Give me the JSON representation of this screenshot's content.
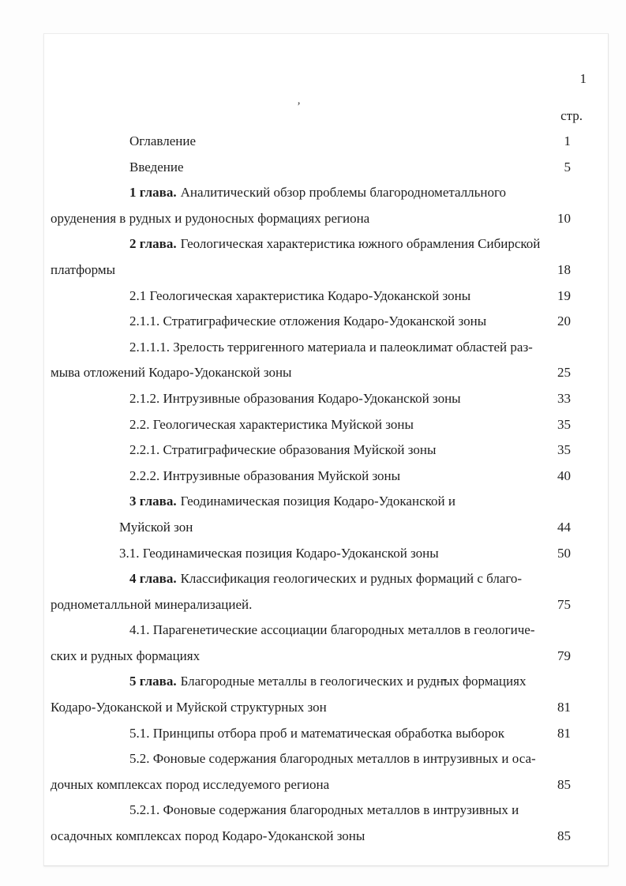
{
  "page": {
    "corner_page_number": "1",
    "column_header": "стр.",
    "stray_apostrophe": "’"
  },
  "toc": {
    "lines": [
      {
        "style": "indent",
        "text": "Оглавление",
        "page": "1"
      },
      {
        "style": "indent",
        "text": "Введение",
        "page": "5"
      },
      {
        "style": "indent",
        "bold": "1 глава.",
        "text": "Аналитический обзор проблемы благороднометалльного"
      },
      {
        "style": "flush",
        "text": "оруденения в рудных и рудоносных формациях региона",
        "page": "10"
      },
      {
        "style": "indent",
        "bold": "2 глава.",
        "text": "Геологическая характеристика южного обрамления Сибирской"
      },
      {
        "style": "flush",
        "text": "платформы",
        "page": "18"
      },
      {
        "style": "indent",
        "text": "2.1 Геологическая характеристика Кодаро-Удоканской зоны",
        "page": "19"
      },
      {
        "style": "indent",
        "text": "2.1.1. Стратиграфические отложения Кодаро-Удоканской зоны",
        "page": "20"
      },
      {
        "style": "indent",
        "text": "2.1.1.1. Зрелость терригенного материала и палеоклимат областей раз-"
      },
      {
        "style": "flush",
        "text": "мыва отложений Кодаро-Удоканской зоны",
        "page": "25"
      },
      {
        "style": "indent",
        "text": "2.1.2. Интрузивные образования Кодаро-Удоканской зоны",
        "page": "33"
      },
      {
        "style": "indent",
        "text": "2.2. Геологическая характеристика Муйской зоны",
        "page": "35"
      },
      {
        "style": "indent",
        "text": "2.2.1. Стратиграфические образования Муйской зоны",
        "page": "35"
      },
      {
        "style": "indent",
        "text": "2.2.2. Интрузивные образования Муйской зоны",
        "page": "40"
      },
      {
        "style": "indent",
        "bold": "3 глава.",
        "text": "Геодинамическая позиция Кодаро-Удоканской и"
      },
      {
        "style": "indent2",
        "text": "Муйской зон",
        "page": "44"
      },
      {
        "style": "indent2",
        "text": "3.1. Геодинамическая позиция Кодаро-Удоканской зоны",
        "page": "50"
      },
      {
        "style": "indent",
        "bold": "4 глава.",
        "text": "Классификация геологических и рудных формаций с благо-"
      },
      {
        "style": "flush",
        "text": "роднометалльной минерализацией.",
        "page": "75"
      },
      {
        "style": "indent",
        "text": "4.1. Парагенетические ассоциации благородных металлов в геологиче-"
      },
      {
        "style": "flush",
        "text": "ских и рудных формациях",
        "page": "79"
      },
      {
        "style": "indent",
        "bold": "5 глава.",
        "text": "Благородные металлы в геологических и рудных формациях"
      },
      {
        "style": "flush",
        "text": "Кодаро-Удоканской и Муйской структурных зон",
        "page": "81"
      },
      {
        "style": "indent",
        "text": "5.1. Принципы отбора проб и математическая обработка выборок",
        "page": "81"
      },
      {
        "style": "indent",
        "text": "5.2. Фоновые содержания благородных металлов в интрузивных и оса-"
      },
      {
        "style": "flush",
        "text": "дочных комплексах пород исследуемого региона",
        "page": "85"
      },
      {
        "style": "indent",
        "text": "5.2.1. Фоновые содержания благородных металлов в интрузивных и"
      },
      {
        "style": "flush",
        "text": "осадочных комплексах пород Кодаро-Удоканской зоны",
        "page": "85"
      }
    ]
  }
}
